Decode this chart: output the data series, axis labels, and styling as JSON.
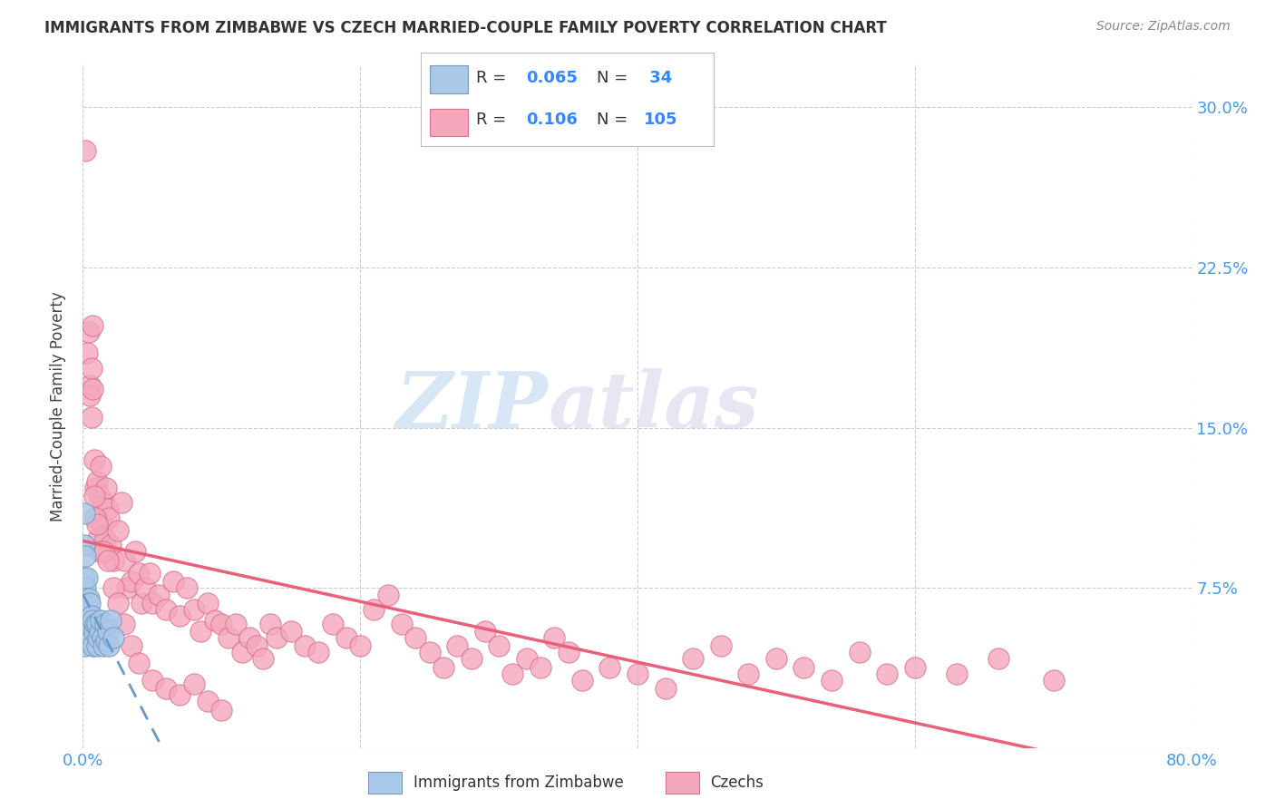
{
  "title": "IMMIGRANTS FROM ZIMBABWE VS CZECH MARRIED-COUPLE FAMILY POVERTY CORRELATION CHART",
  "source": "Source: ZipAtlas.com",
  "ylabel": "Married-Couple Family Poverty",
  "xlim": [
    0,
    0.8
  ],
  "ylim": [
    0,
    0.32
  ],
  "xticks": [
    0.0,
    0.2,
    0.4,
    0.6,
    0.8
  ],
  "xticklabels": [
    "0.0%",
    "",
    "",
    "",
    "80.0%"
  ],
  "yticks": [
    0.0,
    0.075,
    0.15,
    0.225,
    0.3
  ],
  "yticklabels": [
    "",
    "7.5%",
    "15.0%",
    "22.5%",
    "30.0%"
  ],
  "grid_color": "#cccccc",
  "background_color": "#ffffff",
  "watermark_zip": "ZIP",
  "watermark_atlas": "atlas",
  "color_zimbabwe": "#aac8e8",
  "color_czech": "#f5a8bc",
  "line_color_zimbabwe": "#6699cc",
  "line_color_czech": "#e8607a",
  "scatter_edge_zimbabwe": "#7799bb",
  "scatter_edge_czech": "#d87090",
  "zimbabwe_x": [
    0.001,
    0.001,
    0.001,
    0.001,
    0.002,
    0.002,
    0.002,
    0.002,
    0.002,
    0.003,
    0.003,
    0.003,
    0.004,
    0.004,
    0.005,
    0.005,
    0.006,
    0.007,
    0.007,
    0.008,
    0.009,
    0.01,
    0.01,
    0.011,
    0.012,
    0.013,
    0.014,
    0.015,
    0.016,
    0.017,
    0.018,
    0.019,
    0.02,
    0.022
  ],
  "zimbabwe_y": [
    0.11,
    0.095,
    0.08,
    0.065,
    0.09,
    0.075,
    0.068,
    0.058,
    0.048,
    0.08,
    0.065,
    0.052,
    0.07,
    0.055,
    0.068,
    0.05,
    0.062,
    0.06,
    0.048,
    0.055,
    0.058,
    0.058,
    0.048,
    0.052,
    0.055,
    0.06,
    0.052,
    0.048,
    0.058,
    0.05,
    0.055,
    0.048,
    0.06,
    0.052
  ],
  "czech_x": [
    0.002,
    0.003,
    0.004,
    0.005,
    0.006,
    0.007,
    0.008,
    0.009,
    0.01,
    0.011,
    0.012,
    0.013,
    0.014,
    0.015,
    0.016,
    0.017,
    0.018,
    0.019,
    0.02,
    0.022,
    0.025,
    0.028,
    0.03,
    0.032,
    0.035,
    0.038,
    0.04,
    0.042,
    0.045,
    0.048,
    0.05,
    0.055,
    0.06,
    0.065,
    0.07,
    0.075,
    0.08,
    0.085,
    0.09,
    0.095,
    0.1,
    0.105,
    0.11,
    0.115,
    0.12,
    0.125,
    0.13,
    0.135,
    0.14,
    0.15,
    0.16,
    0.17,
    0.18,
    0.19,
    0.2,
    0.21,
    0.22,
    0.23,
    0.24,
    0.25,
    0.26,
    0.27,
    0.28,
    0.29,
    0.3,
    0.31,
    0.32,
    0.33,
    0.34,
    0.35,
    0.36,
    0.38,
    0.4,
    0.42,
    0.44,
    0.46,
    0.48,
    0.5,
    0.52,
    0.54,
    0.56,
    0.58,
    0.6,
    0.63,
    0.66,
    0.7,
    0.005,
    0.006,
    0.007,
    0.008,
    0.009,
    0.01,
    0.012,
    0.015,
    0.018,
    0.022,
    0.025,
    0.03,
    0.035,
    0.04,
    0.05,
    0.06,
    0.07,
    0.08,
    0.09,
    0.1
  ],
  "czech_y": [
    0.28,
    0.185,
    0.195,
    0.17,
    0.178,
    0.198,
    0.135,
    0.122,
    0.125,
    0.098,
    0.118,
    0.132,
    0.105,
    0.115,
    0.098,
    0.122,
    0.112,
    0.108,
    0.095,
    0.088,
    0.102,
    0.115,
    0.088,
    0.075,
    0.078,
    0.092,
    0.082,
    0.068,
    0.075,
    0.082,
    0.068,
    0.072,
    0.065,
    0.078,
    0.062,
    0.075,
    0.065,
    0.055,
    0.068,
    0.06,
    0.058,
    0.052,
    0.058,
    0.045,
    0.052,
    0.048,
    0.042,
    0.058,
    0.052,
    0.055,
    0.048,
    0.045,
    0.058,
    0.052,
    0.048,
    0.065,
    0.072,
    0.058,
    0.052,
    0.045,
    0.038,
    0.048,
    0.042,
    0.055,
    0.048,
    0.035,
    0.042,
    0.038,
    0.052,
    0.045,
    0.032,
    0.038,
    0.035,
    0.028,
    0.042,
    0.048,
    0.035,
    0.042,
    0.038,
    0.032,
    0.045,
    0.035,
    0.038,
    0.035,
    0.042,
    0.032,
    0.165,
    0.155,
    0.168,
    0.118,
    0.108,
    0.105,
    0.092,
    0.092,
    0.088,
    0.075,
    0.068,
    0.058,
    0.048,
    0.04,
    0.032,
    0.028,
    0.025,
    0.03,
    0.022,
    0.018
  ]
}
